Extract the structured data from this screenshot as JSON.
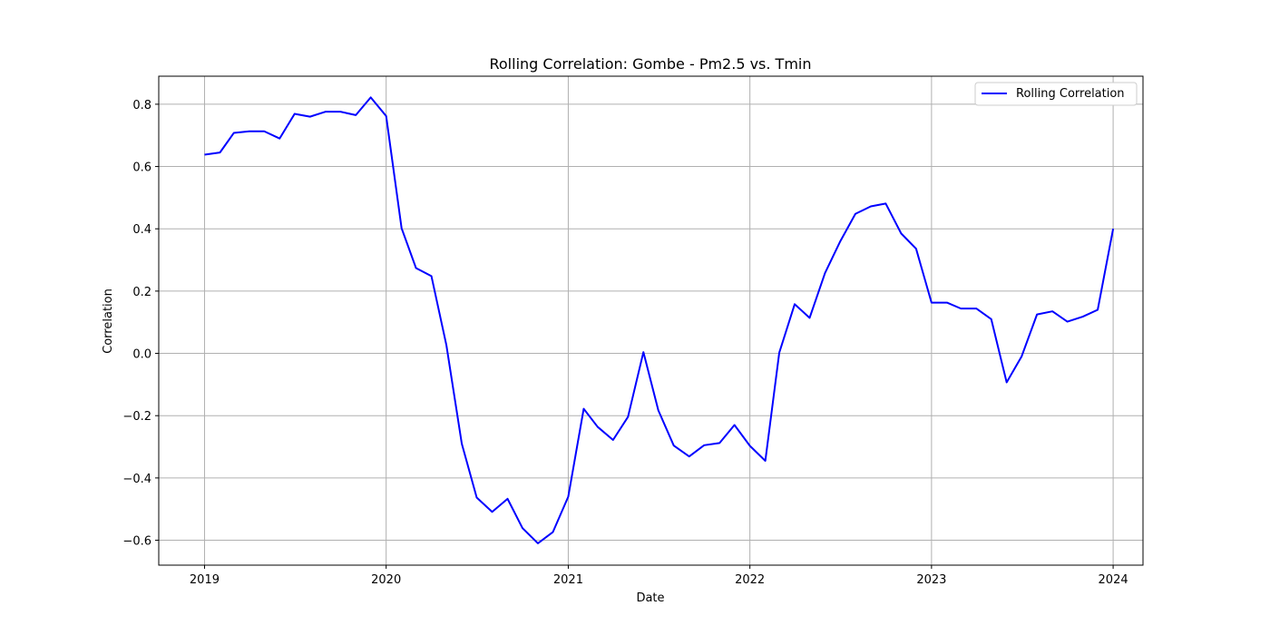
{
  "chart_data": {
    "type": "line",
    "title": "Rolling Correlation: Gombe - Pm2.5 vs. Tmin",
    "xlabel": "Date",
    "ylabel": "Correlation",
    "xlim": [
      "2018-10-01",
      "2024-03-01"
    ],
    "ylim": [
      -0.68,
      0.89
    ],
    "grid": true,
    "legend": "top-right",
    "x_ticks": [
      "2019",
      "2020",
      "2021",
      "2022",
      "2023",
      "2024"
    ],
    "y_ticks": [
      -0.6,
      -0.4,
      -0.2,
      0.0,
      0.2,
      0.4,
      0.6,
      0.8
    ],
    "series": [
      {
        "name": "Rolling Correlation",
        "color": "#0000ff",
        "x": [
          "2019-01",
          "2019-02",
          "2019-03",
          "2019-04",
          "2019-05",
          "2019-06",
          "2019-07",
          "2019-08",
          "2019-09",
          "2019-10",
          "2019-11",
          "2019-12",
          "2020-01",
          "2020-02",
          "2020-03",
          "2020-04",
          "2020-05",
          "2020-06",
          "2020-07",
          "2020-08",
          "2020-09",
          "2020-10",
          "2020-11",
          "2020-12",
          "2021-01",
          "2021-02",
          "2021-03",
          "2021-04",
          "2021-05",
          "2021-06",
          "2021-07",
          "2021-08",
          "2021-09",
          "2021-10",
          "2021-11",
          "2021-12",
          "2022-01",
          "2022-02",
          "2022-03",
          "2022-04",
          "2022-05",
          "2022-06",
          "2022-07",
          "2022-08",
          "2022-09",
          "2022-10",
          "2022-11",
          "2022-12",
          "2023-01",
          "2023-02",
          "2023-03",
          "2023-04",
          "2023-05",
          "2023-06",
          "2023-07",
          "2023-08",
          "2023-09",
          "2023-10",
          "2023-11",
          "2023-12",
          "2024-01"
        ],
        "values": [
          0.638,
          0.645,
          0.708,
          0.713,
          0.713,
          0.69,
          0.769,
          0.76,
          0.776,
          0.776,
          0.765,
          0.822,
          0.762,
          0.402,
          0.274,
          0.248,
          0.027,
          -0.29,
          -0.463,
          -0.509,
          -0.467,
          -0.561,
          -0.61,
          -0.574,
          -0.46,
          -0.178,
          -0.236,
          -0.278,
          -0.204,
          0.004,
          -0.183,
          -0.296,
          -0.331,
          -0.295,
          -0.288,
          -0.23,
          -0.297,
          -0.345,
          0.002,
          0.158,
          0.114,
          0.258,
          0.358,
          0.448,
          0.472,
          0.481,
          0.385,
          0.336,
          0.163,
          0.163,
          0.144,
          0.144,
          0.11,
          -0.093,
          -0.01,
          0.125,
          0.135,
          0.102,
          0.118,
          0.14,
          0.4
        ]
      }
    ]
  }
}
